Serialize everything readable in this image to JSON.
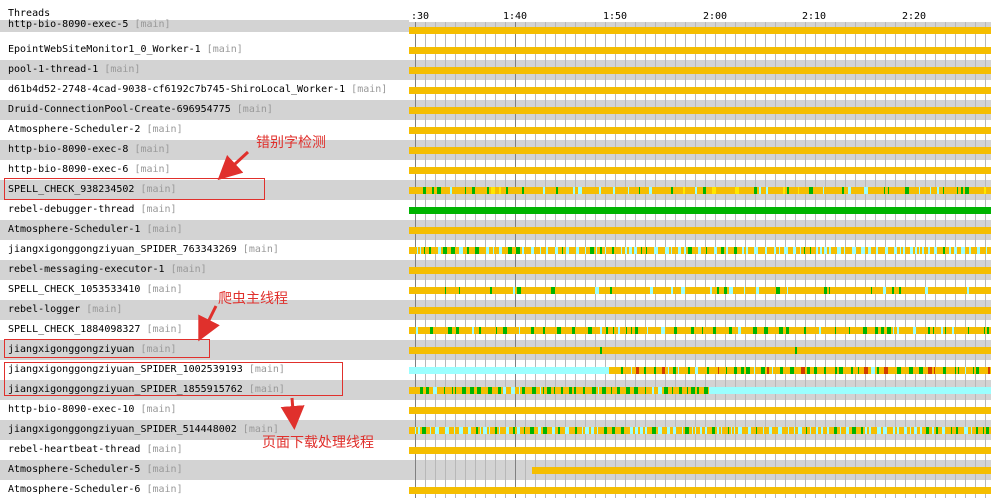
{
  "header": {
    "threads_label": "Threads"
  },
  "time_axis": {
    "ticks": [
      ":30",
      "1:40",
      "1:50",
      "2:00",
      "2:10",
      "2:20"
    ]
  },
  "colors": {
    "running": "#F5BE00",
    "waiting": "#FFC800",
    "active": "#00B400",
    "io": "#9BFFFF",
    "blocked": "#D23C00",
    "annotation": "#E0302C"
  },
  "threads": [
    {
      "name": "http-bio-8090-exec-5",
      "group": "[main]",
      "shaded": true,
      "partial": true
    },
    {
      "name": "EpointWebSiteMonitor1_0_Worker-1",
      "group": "[main]",
      "shaded": false
    },
    {
      "name": "pool-1-thread-1",
      "group": "[main]",
      "shaded": true
    },
    {
      "name": "d61b4d52-2748-4cad-9038-cf6192c7b745-ShiroLocal_Worker-1",
      "group": "[main]",
      "shaded": false
    },
    {
      "name": "Druid-ConnectionPool-Create-696954775",
      "group": "[main]",
      "shaded": true
    },
    {
      "name": "Atmosphere-Scheduler-2",
      "group": "[main]",
      "shaded": false
    },
    {
      "name": "http-bio-8090-exec-8",
      "group": "[main]",
      "shaded": true
    },
    {
      "name": "http-bio-8090-exec-6",
      "group": "[main]",
      "shaded": false
    },
    {
      "name": "SPELL_CHECK_938234502",
      "group": "[main]",
      "shaded": true
    },
    {
      "name": "rebel-debugger-thread",
      "group": "[main]",
      "shaded": false
    },
    {
      "name": "Atmosphere-Scheduler-1",
      "group": "[main]",
      "shaded": true
    },
    {
      "name": "jiangxigonggongziyuan_SPIDER_763343269",
      "group": "[main]",
      "shaded": false
    },
    {
      "name": "rebel-messaging-executor-1",
      "group": "[main]",
      "shaded": true
    },
    {
      "name": "SPELL_CHECK_1053533410",
      "group": "[main]",
      "shaded": false
    },
    {
      "name": "rebel-logger",
      "group": "[main]",
      "shaded": true
    },
    {
      "name": "SPELL_CHECK_1884098327",
      "group": "[main]",
      "shaded": false
    },
    {
      "name": "jiangxigonggongziyuan",
      "group": "[main]",
      "shaded": true
    },
    {
      "name": "jiangxigonggongziyuan_SPIDER_1002539193",
      "group": "[main]",
      "shaded": false
    },
    {
      "name": "jiangxigonggongziyuan_SPIDER_1855915762",
      "group": "[main]",
      "shaded": true
    },
    {
      "name": "http-bio-8090-exec-10",
      "group": "[main]",
      "shaded": false
    },
    {
      "name": "jiangxigonggongziyuan_SPIDER_514448002",
      "group": "[main]",
      "shaded": true
    },
    {
      "name": "rebel-heartbeat-thread",
      "group": "[main]",
      "shaded": false
    },
    {
      "name": "Atmosphere-Scheduler-5",
      "group": "[main]",
      "shaded": true
    },
    {
      "name": "Atmosphere-Scheduler-6",
      "group": "[main]",
      "shaded": false
    }
  ],
  "annotations": {
    "spell_check": "错别字检测",
    "spider_main": "爬虫主线程",
    "page_download": "页面下载处理线程"
  }
}
